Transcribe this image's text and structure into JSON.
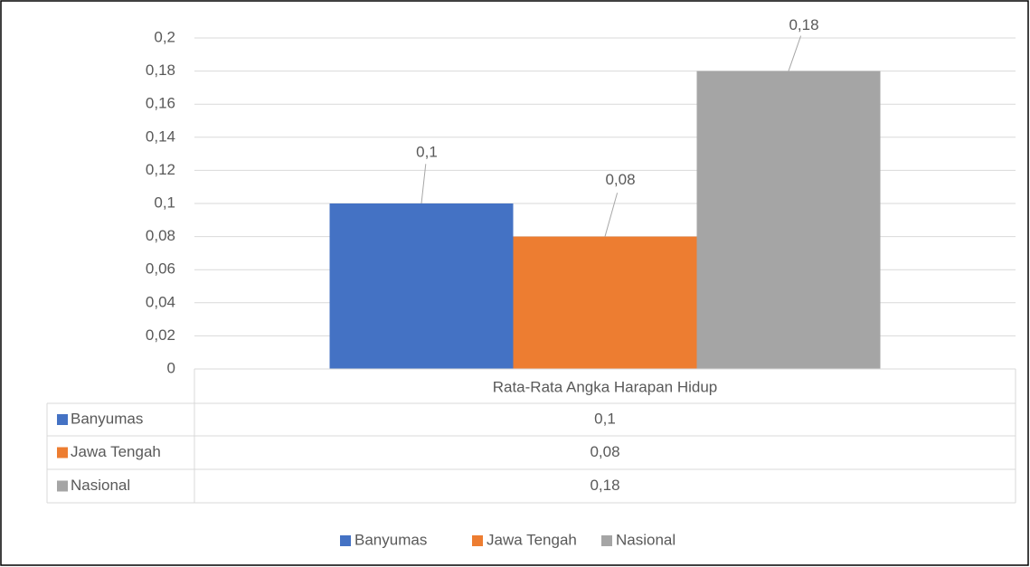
{
  "chart_data": {
    "type": "bar",
    "categories": [
      "Rata-Rata Angka Harapan Hidup"
    ],
    "series": [
      {
        "name": "Banyumas",
        "color": "#4472c4",
        "values": [
          0.1
        ],
        "value_labels": [
          "0,1"
        ]
      },
      {
        "name": "Jawa Tengah",
        "color": "#ed7d31",
        "values": [
          0.08
        ],
        "value_labels": [
          "0,08"
        ]
      },
      {
        "name": "Nasional",
        "color": "#a5a5a5",
        "values": [
          0.18
        ],
        "value_labels": [
          "0,18"
        ]
      }
    ],
    "ylim": [
      0,
      0.2
    ],
    "yticks": [
      0,
      {
        "value": 0.02,
        "label": "0,02"
      },
      {
        "value": 0.04,
        "label": "0,04"
      },
      {
        "value": 0.06,
        "label": "0,06"
      },
      {
        "value": 0.08,
        "label": "0,08"
      },
      {
        "value": 0.1,
        "label": "0,1"
      },
      {
        "value": 0.12,
        "label": "0,12"
      },
      {
        "value": 0.14,
        "label": "0,14"
      },
      {
        "value": 0.16,
        "label": "0,16"
      },
      {
        "value": 0.18,
        "label": "0,18"
      },
      {
        "value": 0.2,
        "label": "0,2"
      }
    ],
    "grid": true,
    "data_table": true,
    "legend": "bottom"
  }
}
